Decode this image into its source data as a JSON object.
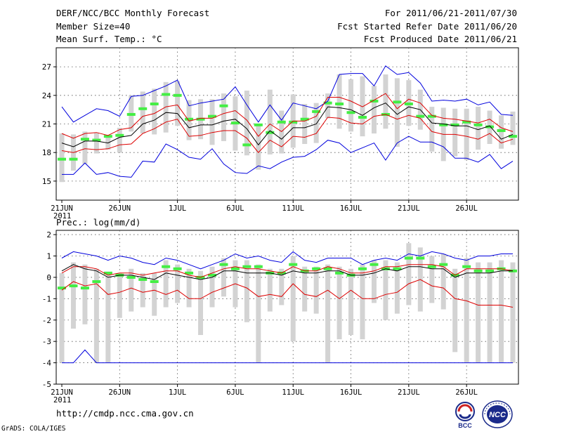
{
  "header": {
    "title": "DERF/NCC/BCC Monthly Forecast",
    "member_size": "Member Size=40",
    "variable": "Mean Surf. Temp.: °C",
    "period": "For 2011/06/21-2011/07/30",
    "start_date": "Fcst Started Refer Date 2011/06/20",
    "produced_date": "Fcst Produced Date 2011/06/21"
  },
  "prec_label": "Prec.: log(mm/d)",
  "footer": {
    "url": "http://cmdp.ncc.cma.gov.cn",
    "credit": "GrADS: COLA/IGES",
    "logo_bcc": "BCC",
    "logo_ncc": "NCC"
  },
  "colors": {
    "max_min": "#0000dd",
    "mean": "#000000",
    "spread": "#dd0000",
    "box": "#d3d3d3",
    "median": "#44ee44",
    "grid": "#555555"
  },
  "chart_data": [
    {
      "type": "line",
      "title": "Mean Surf. Temp.: °C",
      "ylim": [
        13,
        29
      ],
      "yticks": [
        15,
        18,
        21,
        24,
        27
      ],
      "xticks": [
        "21JUN",
        "26JUN",
        "1JUL",
        "6JUL",
        "11JUL",
        "16JUL",
        "21JUL",
        "26JUL"
      ],
      "xtick_index": [
        0,
        5,
        10,
        15,
        20,
        25,
        30,
        35
      ],
      "year_label": "2011",
      "days": 40,
      "series": [
        {
          "name": "max",
          "values": [
            22.8,
            21.2,
            21.9,
            22.6,
            22.4,
            21.8,
            23.9,
            24.0,
            24.5,
            25.0,
            25.6,
            22.9,
            23.2,
            23.4,
            23.6,
            24.9,
            23.0,
            21.2,
            23.0,
            21.4,
            23.2,
            22.9,
            22.6,
            23.4,
            26.2,
            26.3,
            26.3,
            25.0,
            27.1,
            26.2,
            26.4,
            25.3,
            23.4,
            23.5,
            23.4,
            23.6,
            23.0,
            23.3,
            22.0,
            21.9
          ]
        },
        {
          "name": "mean_plus_sd",
          "values": [
            20.0,
            19.5,
            20.0,
            20.1,
            19.8,
            20.4,
            20.6,
            21.8,
            22.1,
            22.8,
            23.0,
            21.3,
            21.6,
            21.6,
            22.1,
            22.4,
            21.4,
            19.7,
            21.0,
            20.2,
            21.3,
            21.3,
            21.8,
            23.8,
            23.8,
            23.4,
            22.8,
            23.5,
            24.2,
            22.6,
            23.6,
            23.2,
            21.9,
            21.6,
            21.5,
            21.3,
            21.1,
            21.5,
            20.6,
            20.2
          ]
        },
        {
          "name": "mean",
          "values": [
            19.0,
            18.6,
            19.2,
            19.2,
            19.0,
            19.6,
            19.8,
            21.0,
            21.4,
            22.2,
            22.1,
            20.6,
            20.9,
            20.9,
            21.3,
            21.5,
            20.5,
            18.8,
            20.3,
            19.4,
            20.6,
            20.6,
            21.0,
            22.8,
            22.7,
            22.5,
            21.9,
            22.7,
            23.2,
            22.0,
            22.8,
            22.5,
            21.1,
            21.0,
            20.8,
            20.8,
            20.4,
            20.8,
            19.4,
            19.9
          ]
        },
        {
          "name": "mean_minus_sd",
          "values": [
            18.2,
            18.0,
            18.4,
            18.3,
            18.4,
            18.8,
            18.9,
            20.0,
            20.5,
            21.2,
            21.5,
            19.7,
            19.8,
            20.1,
            20.3,
            20.3,
            19.5,
            18.0,
            19.3,
            18.6,
            19.7,
            19.6,
            20.0,
            21.7,
            21.6,
            21.1,
            21.0,
            21.8,
            22.0,
            21.5,
            21.9,
            21.6,
            20.2,
            19.9,
            19.9,
            19.7,
            19.4,
            20.0,
            19.0,
            19.4
          ]
        },
        {
          "name": "min",
          "values": [
            15.7,
            15.7,
            16.9,
            15.7,
            15.9,
            15.5,
            15.4,
            17.1,
            17.0,
            18.9,
            18.3,
            17.5,
            17.3,
            18.4,
            16.8,
            15.9,
            15.8,
            16.6,
            16.3,
            17.0,
            17.5,
            17.6,
            18.3,
            19.3,
            19.0,
            18.0,
            18.5,
            19.0,
            17.2,
            19.0,
            19.7,
            19.1,
            19.1,
            18.6,
            17.4,
            17.4,
            17.0,
            17.8,
            16.3,
            17.1
          ]
        },
        {
          "name": "median",
          "values": [
            17.3,
            17.3,
            19.4,
            19.3,
            19.7,
            19.8,
            22.0,
            22.6,
            23.1,
            24.1,
            24.0,
            21.5,
            21.5,
            21.8,
            22.9,
            21.1,
            18.8,
            20.9,
            20.1,
            21.2,
            21.2,
            21.5,
            22.3,
            23.2,
            23.1,
            22.2,
            21.7,
            23.4,
            22.0,
            23.3,
            23.1,
            21.8,
            21.8,
            20.9,
            20.9,
            21.2,
            20.9,
            20.7,
            20.3,
            19.7
          ]
        },
        {
          "name": "box_top",
          "values": [
            20.0,
            19.9,
            20.2,
            20.1,
            19.8,
            20.6,
            24.0,
            24.4,
            24.7,
            25.4,
            25.5,
            23.5,
            23.6,
            23.6,
            24.2,
            23.9,
            24.5,
            21.0,
            24.6,
            22.4,
            24.1,
            23.1,
            23.2,
            24.2,
            26.2,
            25.7,
            26.0,
            25.0,
            26.2,
            25.8,
            25.6,
            24.6,
            22.8,
            22.7,
            22.6,
            22.6,
            22.8,
            22.4,
            21.9,
            22.3
          ]
        },
        {
          "name": "box_bottom",
          "values": [
            14.9,
            16.1,
            16.8,
            17.9,
            18.3,
            18.0,
            20.2,
            20.0,
            19.9,
            20.1,
            20.8,
            19.3,
            19.4,
            18.8,
            19.2,
            18.2,
            17.7,
            16.2,
            17.8,
            17.9,
            18.5,
            18.9,
            19.0,
            21.6,
            20.5,
            20.2,
            19.7,
            20.0,
            20.5,
            18.6,
            20.8,
            20.4,
            18.1,
            17.1,
            17.6,
            17.2,
            18.3,
            18.9,
            18.4,
            18.8
          ]
        }
      ]
    },
    {
      "type": "line",
      "title": "Prec.: log(mm/d)",
      "ylim": [
        -5,
        2.2
      ],
      "yticks": [
        -5,
        -4,
        -3,
        -2,
        -1,
        0,
        1,
        2
      ],
      "xticks": [
        "21JUN",
        "26JUN",
        "1JUL",
        "6JUL",
        "11JUL",
        "16JUL",
        "21JUL",
        "26JUL"
      ],
      "xtick_index": [
        0,
        5,
        10,
        15,
        20,
        25,
        30,
        35
      ],
      "year_label": "2011",
      "days": 40,
      "series": [
        {
          "name": "max",
          "values": [
            0.9,
            1.2,
            1.1,
            1.0,
            0.8,
            1.0,
            0.9,
            0.7,
            0.6,
            0.9,
            0.8,
            0.6,
            0.4,
            0.6,
            0.8,
            1.1,
            0.9,
            1.0,
            0.8,
            0.7,
            1.2,
            0.8,
            0.7,
            0.9,
            0.9,
            0.9,
            0.6,
            0.8,
            0.9,
            0.8,
            1.1,
            1.0,
            1.2,
            1.1,
            0.9,
            0.8,
            1.0,
            1.0,
            1.1,
            1.1
          ]
        },
        {
          "name": "mean_plus_sd",
          "values": [
            0.2,
            0.5,
            0.5,
            0.4,
            0.1,
            0.2,
            0.2,
            0.1,
            0.2,
            0.3,
            0.3,
            0.1,
            0.0,
            0.2,
            0.4,
            0.5,
            0.4,
            0.4,
            0.3,
            0.2,
            0.5,
            0.3,
            0.3,
            0.5,
            0.4,
            0.2,
            0.2,
            0.3,
            0.5,
            0.5,
            0.6,
            0.6,
            0.6,
            0.5,
            0.1,
            0.4,
            0.4,
            0.4,
            0.4,
            0.3
          ]
        },
        {
          "name": "mean",
          "values": [
            0.3,
            0.6,
            0.4,
            0.3,
            0.0,
            0.1,
            0.1,
            0.0,
            -0.1,
            0.2,
            0.1,
            0.0,
            -0.1,
            0.0,
            0.3,
            0.3,
            0.2,
            0.2,
            0.2,
            0.1,
            0.3,
            0.2,
            0.2,
            0.3,
            0.3,
            0.1,
            0.1,
            0.2,
            0.4,
            0.3,
            0.5,
            0.5,
            0.4,
            0.4,
            0.0,
            0.2,
            0.2,
            0.2,
            0.3,
            0.3
          ]
        },
        {
          "name": "mean_minus_sd",
          "values": [
            -0.6,
            -0.2,
            -0.4,
            -0.3,
            -0.8,
            -0.7,
            -0.5,
            -0.7,
            -0.6,
            -0.8,
            -0.6,
            -1.0,
            -1.0,
            -0.7,
            -0.5,
            -0.3,
            -0.5,
            -0.9,
            -0.8,
            -0.9,
            -0.3,
            -0.8,
            -0.9,
            -0.6,
            -1.0,
            -0.6,
            -1.0,
            -1.0,
            -0.8,
            -0.7,
            -0.3,
            -0.1,
            -0.4,
            -0.5,
            -1.0,
            -1.1,
            -1.3,
            -1.3,
            -1.3,
            -1.4
          ]
        },
        {
          "name": "min",
          "values": [
            -4.0,
            -4.0,
            -3.4,
            -4.0,
            -4.0,
            -4.0,
            -4.0,
            -4.0,
            -4.0,
            -4.0,
            -4.0,
            -4.0,
            -4.0,
            -4.0,
            -4.0,
            -4.0,
            -4.0,
            -4.0,
            -4.0,
            -4.0,
            -4.0,
            -4.0,
            -4.0,
            -4.0,
            -4.0,
            -4.0,
            -4.0,
            -4.0,
            -4.0,
            -4.0,
            -4.0,
            -4.0,
            -4.0,
            -4.0,
            -4.0,
            -4.0,
            -4.0,
            -4.0,
            -4.0,
            -4.0
          ]
        },
        {
          "name": "median",
          "values": [
            -0.5,
            -0.4,
            -0.5,
            -0.2,
            0.2,
            0.1,
            0.0,
            -0.1,
            -0.2,
            0.5,
            0.4,
            0.2,
            0.0,
            0.1,
            0.6,
            0.4,
            0.5,
            0.5,
            0.2,
            0.2,
            0.6,
            0.3,
            0.4,
            0.4,
            0.2,
            0.1,
            0.4,
            0.6,
            0.4,
            0.4,
            0.9,
            0.9,
            0.5,
            0.6,
            0.1,
            0.5,
            0.3,
            0.3,
            0.4,
            0.3
          ]
        },
        {
          "name": "box_top",
          "values": [
            0.2,
            0.7,
            0.6,
            0.4,
            0.2,
            0.2,
            0.4,
            0.2,
            0.2,
            0.8,
            0.6,
            0.4,
            0.3,
            0.5,
            0.9,
            0.8,
            0.8,
            0.6,
            0.4,
            0.4,
            1.0,
            0.5,
            0.5,
            0.6,
            0.5,
            0.4,
            0.6,
            0.8,
            0.8,
            0.7,
            1.6,
            1.4,
            1.0,
            1.1,
            0.4,
            0.9,
            0.7,
            0.7,
            0.8,
            0.7
          ]
        },
        {
          "name": "box_bottom",
          "values": [
            -4.0,
            -2.4,
            -2.2,
            -4.0,
            -4.0,
            -1.9,
            -1.6,
            -1.4,
            -1.8,
            -1.4,
            -1.2,
            -1.4,
            -2.7,
            -1.4,
            -0.9,
            -1.4,
            -2.1,
            -4.0,
            -1.6,
            -1.3,
            -3.0,
            -1.6,
            -1.7,
            -4.0,
            -2.9,
            -2.7,
            -2.9,
            -1.2,
            -2.0,
            -1.7,
            -1.3,
            -1.6,
            -1.2,
            -1.5,
            -3.5,
            -4.0,
            -4.0,
            -4.0,
            -4.0,
            -4.0
          ]
        }
      ]
    }
  ]
}
